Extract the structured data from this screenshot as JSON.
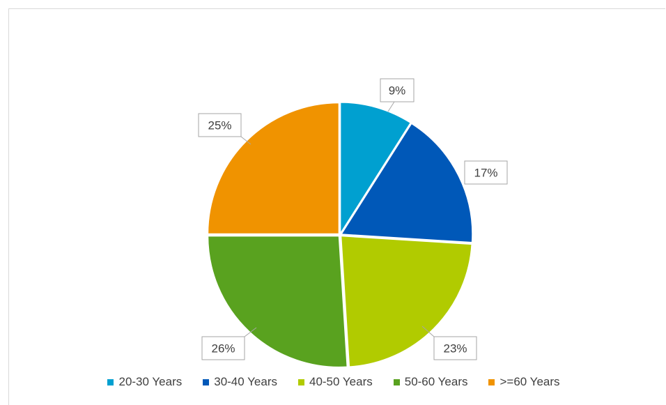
{
  "chart_data": {
    "type": "pie",
    "title": "",
    "categories": [
      "20-30 Years",
      "30-40 Years",
      "40-50 Years",
      "50-60 Years",
      ">=60 Years"
    ],
    "values": [
      9,
      17,
      23,
      26,
      25
    ],
    "data_labels": [
      "9%",
      "17%",
      "23%",
      "26%",
      "25%"
    ],
    "colors": [
      "#00a0d0",
      "#0058b8",
      "#b1cb00",
      "#59a21f",
      "#f09300"
    ],
    "legend_position": "bottom",
    "start_angle_deg": 0,
    "direction": "clockwise"
  }
}
